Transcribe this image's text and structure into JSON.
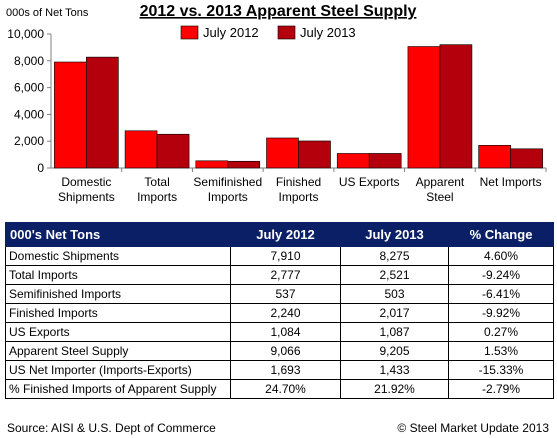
{
  "chart_data": {
    "type": "bar",
    "title": "2012 vs. 2013 Apparent Steel Supply",
    "ylabel": "000s of Net Tons",
    "ylim": [
      0,
      10000
    ],
    "yticks": [
      "0",
      "2,000",
      "4,000",
      "6,000",
      "8,000",
      "10,000"
    ],
    "categories": [
      [
        "Domestic",
        "Shipments"
      ],
      [
        "Total",
        "Imports"
      ],
      [
        "Semifinished",
        "Imports"
      ],
      [
        "Finished",
        "Imports"
      ],
      [
        "US Exports"
      ],
      [
        "Apparent",
        "Steel"
      ],
      [
        "Net Imports"
      ]
    ],
    "series": [
      {
        "name": "July 2012",
        "color": "#ff0000",
        "values": [
          7910,
          2777,
          537,
          2240,
          1084,
          9066,
          1693
        ]
      },
      {
        "name": "July 2013",
        "color": "#b3000c",
        "values": [
          8275,
          2521,
          503,
          2017,
          1087,
          9205,
          1433
        ]
      }
    ],
    "legend_position": "top",
    "grid": false
  },
  "table": {
    "headers": [
      "000's Net Tons",
      "July 2012",
      "July 2013",
      "% Change"
    ],
    "rows": [
      [
        "Domestic Shipments",
        "7,910",
        "8,275",
        "4.60%"
      ],
      [
        "Total Imports",
        "2,777",
        "2,521",
        "-9.24%"
      ],
      [
        "Semifinished Imports",
        "537",
        "503",
        "-6.41%"
      ],
      [
        "Finished Imports",
        "2,240",
        "2,017",
        "-9.92%"
      ],
      [
        "US Exports",
        "1,084",
        "1,087",
        "0.27%"
      ],
      [
        "Apparent Steel Supply",
        "9,066",
        "9,205",
        "1.53%"
      ],
      [
        "US Net Importer (Imports-Exports)",
        "1,693",
        "1,433",
        "-15.33%"
      ],
      [
        "% Finished Imports of Apparent Supply",
        "24.70%",
        "21.92%",
        "-2.79%"
      ]
    ]
  },
  "footer": {
    "source": "Source:  AISI & U.S. Dept of Commerce",
    "copyright": "©    Steel Market Update 2013"
  }
}
